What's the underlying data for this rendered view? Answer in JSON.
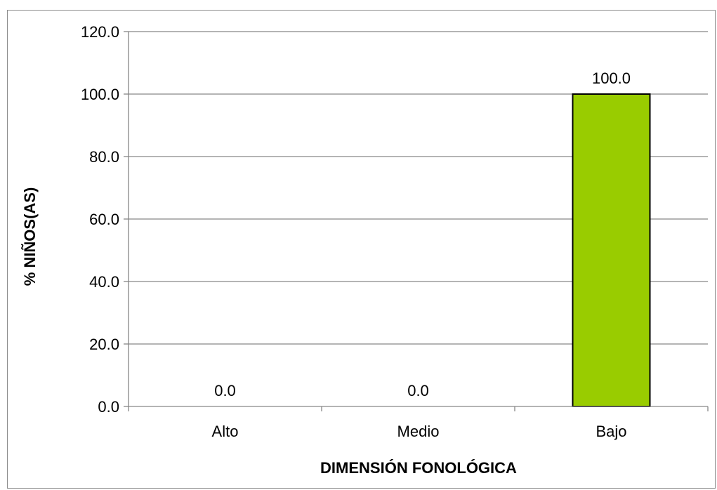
{
  "chart_data": {
    "type": "bar",
    "categories": [
      "Alto",
      "Medio",
      "Bajo"
    ],
    "values": [
      0.0,
      0.0,
      100.0
    ],
    "data_labels": [
      "0.0",
      "0.0",
      "100.0"
    ],
    "title": "",
    "xlabel": "DIMENSIÓN FONOLÓGICA",
    "ylabel": "% NIÑOS(AS)",
    "ylim": [
      0,
      120
    ],
    "yticks": [
      "0.0",
      "20.0",
      "40.0",
      "60.0",
      "80.0",
      "100.0",
      "120.0"
    ],
    "grid": true,
    "legend": "none",
    "colors": {
      "bar": "#99cc00",
      "bar_edge": "#000000",
      "grid": "#868686",
      "axis": "#868686"
    }
  }
}
